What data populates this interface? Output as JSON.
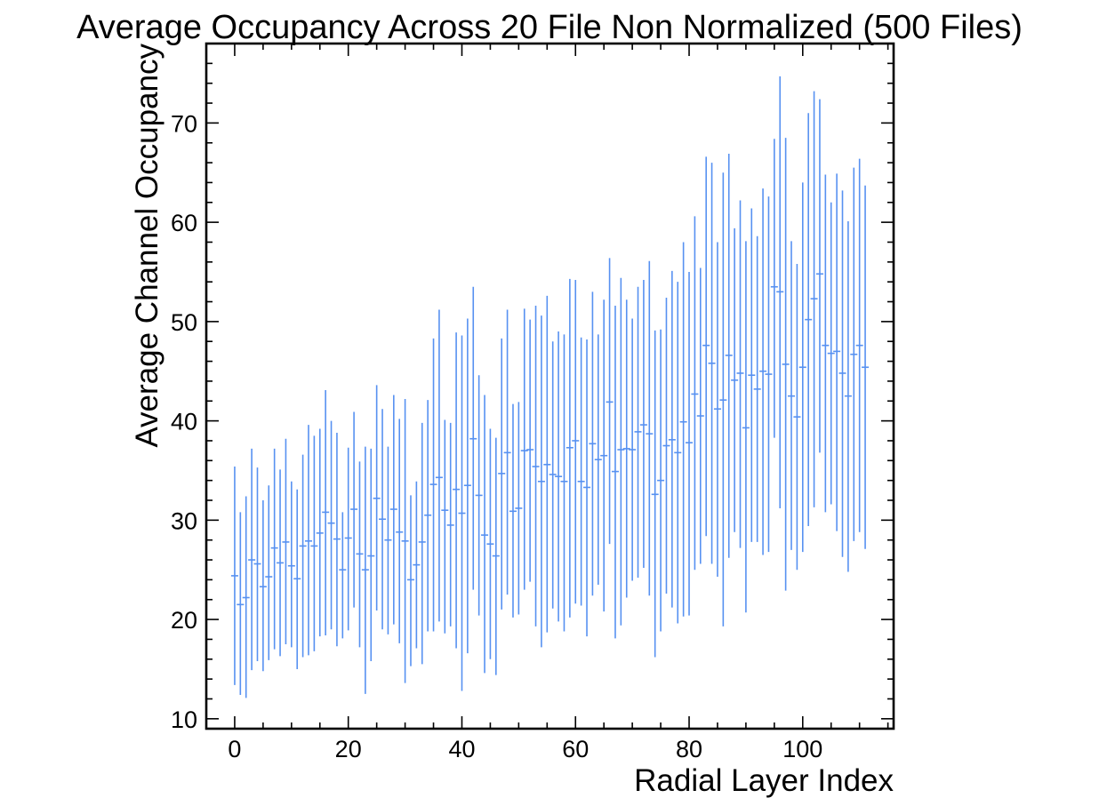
{
  "chart_data": {
    "type": "scatter",
    "title": "Average Occupancy Across 20 File Non Normalized (500 Files)",
    "xlabel": "Radial Layer Index",
    "ylabel": "Average Channel Occupancy",
    "xlim": [
      -5,
      116
    ],
    "ylim": [
      9,
      78
    ],
    "x_ticks": [
      0,
      20,
      40,
      60,
      80,
      100
    ],
    "y_ticks": [
      10,
      20,
      30,
      40,
      50,
      60,
      70
    ],
    "grid": false,
    "legend": "none",
    "color": "#5791F1",
    "series": [
      {
        "x": [
          0,
          1,
          2,
          3,
          4,
          5,
          6,
          7,
          8,
          9,
          10,
          11,
          12,
          13,
          14,
          15,
          16,
          17,
          18,
          19,
          20,
          21,
          22,
          23,
          24,
          25,
          26,
          27,
          28,
          29,
          30,
          31,
          32,
          33,
          34,
          35,
          36,
          37,
          38,
          39,
          40,
          41,
          42,
          43,
          44,
          45,
          46,
          47,
          48,
          49,
          50,
          51,
          52,
          53,
          54,
          55,
          56,
          57,
          58,
          59,
          60,
          61,
          62,
          63,
          64,
          65,
          66,
          67,
          68,
          69,
          70,
          71,
          72,
          73,
          74,
          75,
          76,
          77,
          78,
          79,
          80,
          81,
          82,
          83,
          84,
          85,
          86,
          87,
          88,
          89,
          90,
          91,
          92,
          93,
          94,
          95,
          96,
          97,
          98,
          99,
          100,
          101,
          102,
          103,
          104,
          105,
          106,
          107,
          108,
          109,
          110,
          111
        ],
        "y": [
          24.4,
          21.5,
          22.2,
          26,
          25.6,
          23.3,
          24.3,
          27.2,
          25.7,
          27.8,
          25.4,
          24.1,
          27.4,
          27.9,
          27.4,
          28.7,
          30.8,
          29.7,
          28.1,
          25,
          28.2,
          31.1,
          26.6,
          25,
          26.4,
          32.2,
          30.1,
          28,
          31.1,
          28.8,
          27.9,
          24,
          25.5,
          27.8,
          30.5,
          33.6,
          34.3,
          31,
          29.5,
          33.1,
          30.7,
          33.5,
          38.2,
          32.5,
          28.5,
          27.6,
          26.4,
          34.7,
          36.8,
          30.9,
          31.2,
          37,
          37.1,
          35.4,
          33.9,
          35.6,
          34.6,
          34.4,
          33.9,
          37.3,
          38,
          33.9,
          33.3,
          37.7,
          36.1,
          36.5,
          41.9,
          34.9,
          37.1,
          37.2,
          37.1,
          38.9,
          39.6,
          38.7,
          32.6,
          34,
          37.5,
          38.1,
          36.8,
          39.9,
          37.8,
          42.7,
          40.5,
          47.6,
          45.8,
          41.2,
          42.1,
          46.6,
          44.1,
          44.8,
          39.3,
          44.6,
          43.2,
          45,
          44.7,
          53.5,
          53,
          45.7,
          42.5,
          40.4,
          45.4,
          50.2,
          52.3,
          54.8,
          47.6,
          46.8,
          47,
          44.8,
          42.5,
          46.7,
          47.6,
          45.4
        ],
        "yerr_low": [
          13.4,
          12.4,
          12.1,
          14.9,
          15.8,
          14.8,
          15.9,
          17,
          16.3,
          17.5,
          17.2,
          15,
          16.2,
          16.4,
          16.8,
          18.3,
          18.4,
          19,
          17.3,
          18.1,
          18.9,
          21.2,
          17.2,
          12.5,
          15.8,
          20.9,
          19,
          18.5,
          19.5,
          17.6,
          13.6,
          15.3,
          17.1,
          15.5,
          18.8,
          18.8,
          19.8,
          18.6,
          19.3,
          17.1,
          12.8,
          16.6,
          23,
          20.4,
          14.6,
          16,
          14.4,
          21,
          22.5,
          20.2,
          20.5,
          23,
          23.8,
          19.3,
          17.2,
          18.7,
          21.1,
          19.8,
          18.8,
          20.2,
          21.6,
          21.4,
          18.3,
          22.4,
          23.5,
          20.8,
          27.6,
          18.1,
          19.4,
          22.2,
          23.9,
          24.2,
          25.2,
          22.4,
          16.2,
          18.8,
          22.6,
          21.2,
          19.6,
          20.3,
          20.4,
          25,
          25.6,
          28.4,
          25.6,
          24.3,
          19.3,
          26.2,
          28.8,
          27.2,
          20.7,
          27.8,
          27.8,
          26.5,
          26.8,
          38.3,
          31.2,
          22.9,
          27,
          25,
          26.8,
          29.4,
          31.3,
          36.8,
          30.8,
          31.6,
          28.9,
          26.3,
          24.8,
          27.9,
          28.8,
          27.1
        ],
        "yerr_high": [
          35.4,
          30.8,
          32.4,
          37.2,
          35.3,
          32,
          33.5,
          37.2,
          35.1,
          38.2,
          33.9,
          33.1,
          36.6,
          39.6,
          38.5,
          39.2,
          43.1,
          40,
          38.8,
          30.8,
          37.3,
          40.9,
          35.9,
          37.4,
          37.2,
          43.6,
          41.2,
          37.4,
          42.6,
          40.2,
          42.2,
          32.5,
          33.9,
          39.8,
          42.1,
          48.3,
          51.2,
          40.1,
          39.8,
          48.9,
          48.6,
          50.3,
          53.5,
          44.6,
          42.6,
          39.2,
          38.3,
          48.3,
          51.2,
          41.7,
          41.9,
          51.3,
          50.2,
          51.6,
          50.6,
          52.6,
          48,
          49,
          48.7,
          54.3,
          54.2,
          48.4,
          48.2,
          53,
          48.7,
          52.2,
          56.4,
          51.6,
          54.4,
          52.2,
          50.3,
          53.5,
          54.2,
          56.1,
          49.1,
          49.2,
          52.4,
          55.1,
          54,
          58,
          55,
          60.6,
          55.4,
          66.6,
          66,
          58,
          65,
          66.9,
          59.4,
          62.2,
          58.1,
          61.4,
          58.6,
          63.4,
          62.6,
          68.4,
          74.7,
          68.5,
          58.1,
          55.8,
          64,
          71,
          73.2,
          72.4,
          64.8,
          62,
          64.9,
          63.2,
          60.1,
          65.5,
          66.4,
          63.7
        ]
      }
    ]
  }
}
